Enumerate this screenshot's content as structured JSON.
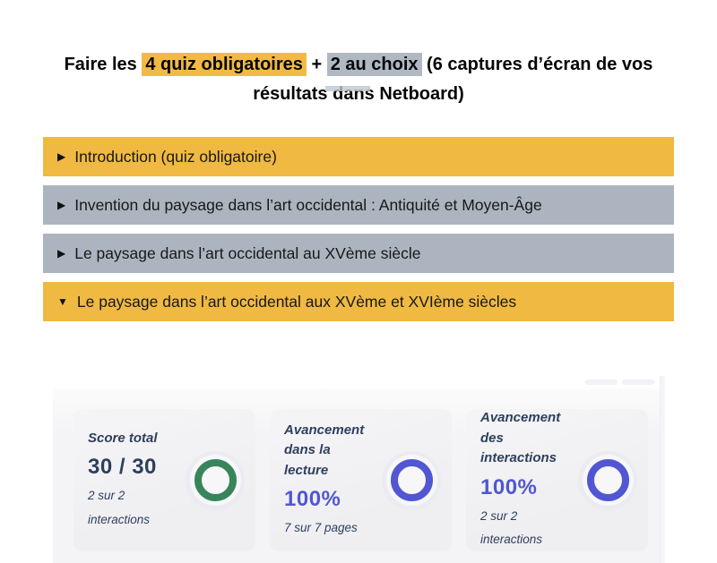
{
  "title": {
    "part1": "Faire les ",
    "highlight1": "4 quiz obligatoires",
    "part2": " + ",
    "highlight2": "2 au choix",
    "part3": " (6 captures d’écran de vos résultats dans Netboard)",
    "highlight1_color": "#F2BA45",
    "highlight2_color": "#B0B9C3"
  },
  "accordion": {
    "items": [
      {
        "label": "Introduction (quiz obligatoire)",
        "arrow": "▶",
        "state": "collapsed",
        "color": "#F0B941"
      },
      {
        "label": "Invention du paysage dans l’art occidental : Antiquité et Moyen-Âge",
        "arrow": "▶",
        "state": "collapsed",
        "color": "#ACB5BF"
      },
      {
        "label": "Le paysage dans l’art occidental au XVème siècle",
        "arrow": "▶",
        "state": "collapsed",
        "color": "#ACB5BF"
      },
      {
        "label": "Le paysage dans l’art occidental aux XVème et XVIème siècles",
        "arrow": "▼",
        "state": "expanded",
        "color": "#F0B941"
      }
    ]
  },
  "panel": {
    "cards": [
      {
        "title": "Score total",
        "value": "30 / 30",
        "value_color": "#2E3F5E",
        "subtitle": "2 sur 2\ninteractions",
        "ring_color": "#38855C"
      },
      {
        "title": "Avancement\ndans la lecture",
        "value": "100%",
        "value_color": "#5157CF",
        "subtitle": "7 sur 7 pages",
        "ring_color": "#5157D2"
      },
      {
        "title": "Avancement des\ninteractions",
        "value": "100%",
        "value_color": "#5157CF",
        "subtitle": "2 sur 2\ninteractions",
        "ring_color": "#5157D2"
      }
    ]
  },
  "colors": {
    "accent_yellow": "#F0B941",
    "accent_gray": "#ACB5BF",
    "green_ring": "#38855C",
    "indigo_ring": "#5157D2",
    "navy_text": "#2E3F5E",
    "purple_text": "#5157CF",
    "halo": "#EBEBF2"
  }
}
